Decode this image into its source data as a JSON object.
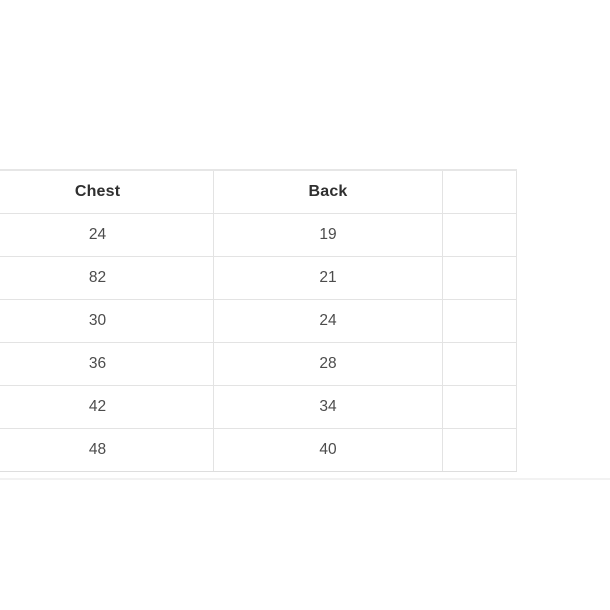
{
  "chart_data": {
    "type": "table",
    "columns": [
      "Chest",
      "Back"
    ],
    "rows": [
      [
        24,
        19
      ],
      [
        82,
        21
      ],
      [
        30,
        24
      ],
      [
        36,
        28
      ],
      [
        42,
        34
      ],
      [
        48,
        40
      ]
    ],
    "layout": {
      "text_align": "center",
      "grid": true,
      "clipped_columns": "additional columns cut off at left and right frame edges"
    }
  },
  "table": {
    "headers": [
      "",
      "Chest",
      "Back",
      ""
    ],
    "rows": [
      [
        "",
        "24",
        "19",
        ""
      ],
      [
        "",
        "82",
        "21",
        ""
      ],
      [
        "",
        "30",
        "24",
        ""
      ],
      [
        "",
        "36",
        "28",
        ""
      ],
      [
        "",
        "42",
        "34",
        ""
      ],
      [
        "",
        "48",
        "40",
        ""
      ]
    ]
  },
  "colors": {
    "background": "#ffffff",
    "border": "#e3e3e3",
    "header_text": "#2f2f2f",
    "cell_text": "#4c4c4c"
  }
}
